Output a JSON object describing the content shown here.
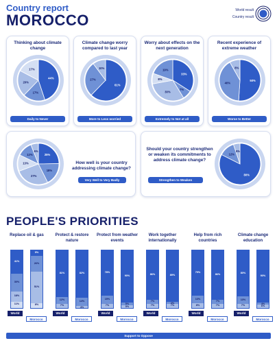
{
  "header": {
    "kicker": "Country report",
    "country": "MOROCCO"
  },
  "legend": {
    "world": "World result",
    "country": "Country result"
  },
  "colors": {
    "c1": "#2f5cc7",
    "c2": "#6f91d6",
    "c3": "#a8bde6",
    "c4": "#d4dff3",
    "navy": "#16206a",
    "ring": "#c9d6f0"
  },
  "chart_data": [
    {
      "type": "pie",
      "title": "Thinking about climate change",
      "scale": "Daily to Never",
      "slices": [
        {
          "label": "44%",
          "value": 44
        },
        {
          "label": "17%",
          "value": 17
        },
        {
          "label": "20%",
          "value": 20
        },
        {
          "label": "17%",
          "value": 17
        }
      ]
    },
    {
      "type": "pie",
      "title": "Climate change worry compared to last year",
      "scale": "More to Less worried",
      "slices": [
        {
          "label": "61%",
          "value": 61
        },
        {
          "label": "27%",
          "value": 27
        },
        {
          "label": "10%",
          "value": 10
        }
      ]
    },
    {
      "type": "pie",
      "title": "Worry about effects on the next generation",
      "scale": "Extremely to Not at all",
      "slices": [
        {
          "label": "33%",
          "value": 33
        },
        {
          "label": "7%",
          "value": 7
        },
        {
          "label": "30%",
          "value": 30
        },
        {
          "label": "8%",
          "value": 8
        },
        {
          "label": "19%",
          "value": 19
        }
      ]
    },
    {
      "type": "pie",
      "title": "Recent experience of extreme weather",
      "scale": "Worse to Better",
      "slices": [
        {
          "label": "50%",
          "value": 50
        },
        {
          "label": "40%",
          "value": 40
        },
        {
          "label": "8%",
          "value": 8
        }
      ]
    },
    {
      "type": "pie",
      "title": "How well is your country addressing climate change?",
      "scale": "Very Well to Very Badly",
      "slices": [
        {
          "label": "25%",
          "value": 25
        },
        {
          "label": "18%",
          "value": 18
        },
        {
          "label": "27%",
          "value": 27
        },
        {
          "label": "13%",
          "value": 13
        },
        {
          "label": "12%",
          "value": 12
        },
        {
          "label": "6%",
          "value": 6
        }
      ]
    },
    {
      "type": "pie",
      "title": "Should your country strengthen or weaken its commitments to address climate change?",
      "scale": "Strengthen to Weaken",
      "slices": [
        {
          "label": "80%",
          "value": 80
        },
        {
          "label": "12%",
          "value": 12
        },
        {
          "label": "5%",
          "value": 5
        }
      ]
    },
    {
      "type": "bar",
      "title": "PEOPLE'S PRIORITIES",
      "scale": "Support to Oppose",
      "categories": [
        "World",
        "Morocco"
      ],
      "groups": [
        {
          "name": "Replace oil & gas",
          "world": [
            41,
            30,
            18,
            11
          ],
          "morocco": [
            9,
            26,
            51,
            8
          ]
        },
        {
          "name": "Protect & restore nature",
          "world": [
            81,
            12,
            7
          ],
          "morocco": [
            82,
            14,
            4
          ]
        },
        {
          "name": "Protect from weather events",
          "world": [
            78,
            15,
            7
          ],
          "morocco": [
            90,
            5,
            5
          ]
        },
        {
          "name": "Work together internationally",
          "world": [
            86,
            7,
            7
          ],
          "morocco": [
            89,
            4,
            7
          ]
        },
        {
          "name": "Help from rich countries",
          "world": [
            79,
            13,
            8
          ],
          "morocco": [
            86,
            7,
            7
          ]
        },
        {
          "name": "Climate change education",
          "world": [
            80,
            13,
            7
          ],
          "morocco": [
            90,
            4,
            6
          ]
        }
      ]
    }
  ]
}
